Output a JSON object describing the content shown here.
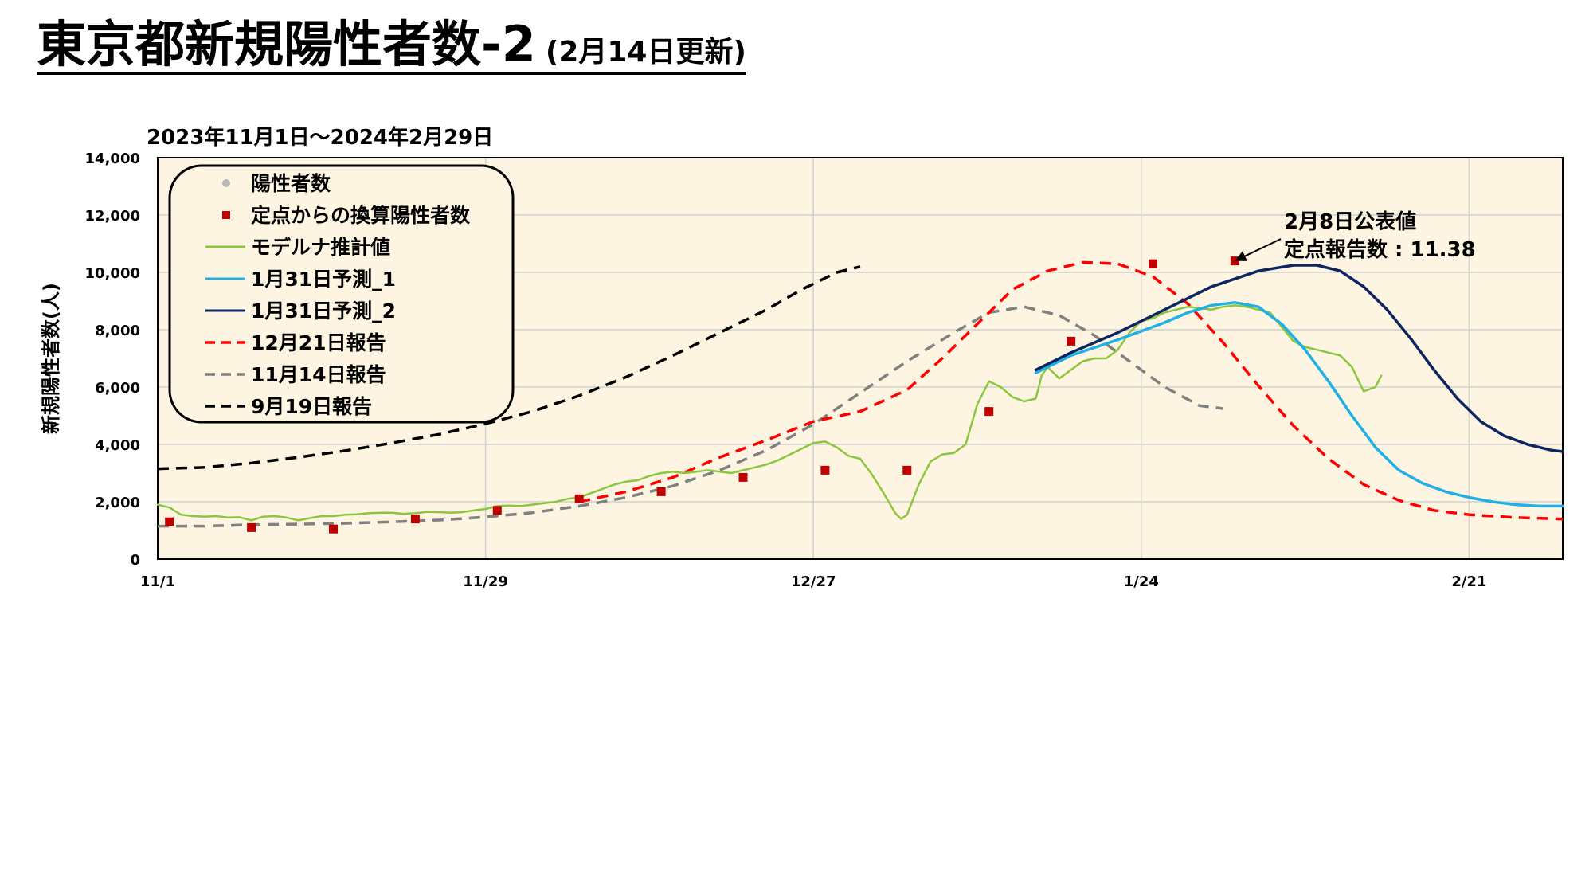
{
  "title": {
    "main": "東京都新規陽性者数-2",
    "sub": "(2月14日更新)"
  },
  "period": "2023年11月1日～2024年2月29日",
  "chart_data": {
    "type": "line",
    "ylabel": "新規陽性者数(人)",
    "ylim": [
      0,
      14000
    ],
    "yticks": [
      0,
      2000,
      4000,
      6000,
      8000,
      10000,
      12000,
      14000
    ],
    "ytick_labels": [
      "0",
      "2,000",
      "4,000",
      "6,000",
      "8,000",
      "10,000",
      "12,000",
      "14,000"
    ],
    "xlim_days": [
      0,
      120
    ],
    "xticks": [
      {
        "day": 0,
        "label": "11/1"
      },
      {
        "day": 28,
        "label": "11/29"
      },
      {
        "day": 56,
        "label": "12/27"
      },
      {
        "day": 84,
        "label": "1/24"
      },
      {
        "day": 112,
        "label": "2/21"
      }
    ],
    "grid": true,
    "legend_position": "top-left",
    "plot_bg": "#fdf5e1",
    "annotation": {
      "line1": "2月8日公表値",
      "line2": "定点報告数 : 11.38",
      "day": 92,
      "value": 10400
    },
    "series": [
      {
        "name": "陽性者数",
        "type": "scatter",
        "marker": "circle",
        "color": "#b8b8b8",
        "points": []
      },
      {
        "name": "定点からの換算陽性者数",
        "type": "scatter",
        "marker": "square",
        "color": "#c00000",
        "points": [
          [
            1,
            1300
          ],
          [
            8,
            1100
          ],
          [
            15,
            1050
          ],
          [
            22,
            1400
          ],
          [
            29,
            1700
          ],
          [
            36,
            2100
          ],
          [
            43,
            2350
          ],
          [
            50,
            2850
          ],
          [
            57,
            3100
          ],
          [
            64,
            3100
          ],
          [
            71,
            5150
          ],
          [
            78,
            7600
          ],
          [
            85,
            10300
          ],
          [
            92,
            10400
          ]
        ]
      },
      {
        "name": "モデルナ推計値",
        "type": "line",
        "color": "#8cc63f",
        "dash": "solid",
        "points": [
          [
            0,
            1900
          ],
          [
            1,
            1800
          ],
          [
            2,
            1550
          ],
          [
            3,
            1500
          ],
          [
            4,
            1480
          ],
          [
            5,
            1500
          ],
          [
            6,
            1450
          ],
          [
            7,
            1460
          ],
          [
            8,
            1350
          ],
          [
            9,
            1480
          ],
          [
            10,
            1500
          ],
          [
            11,
            1450
          ],
          [
            12,
            1350
          ],
          [
            13,
            1430
          ],
          [
            14,
            1500
          ],
          [
            15,
            1500
          ],
          [
            16,
            1550
          ],
          [
            17,
            1560
          ],
          [
            18,
            1600
          ],
          [
            19,
            1620
          ],
          [
            20,
            1620
          ],
          [
            21,
            1580
          ],
          [
            22,
            1600
          ],
          [
            23,
            1650
          ],
          [
            24,
            1640
          ],
          [
            25,
            1620
          ],
          [
            26,
            1640
          ],
          [
            27,
            1700
          ],
          [
            28,
            1750
          ],
          [
            29,
            1850
          ],
          [
            30,
            1870
          ],
          [
            31,
            1850
          ],
          [
            32,
            1900
          ],
          [
            33,
            1950
          ],
          [
            34,
            2000
          ],
          [
            35,
            2100
          ],
          [
            36,
            2150
          ],
          [
            37,
            2300
          ],
          [
            38,
            2450
          ],
          [
            39,
            2600
          ],
          [
            40,
            2700
          ],
          [
            41,
            2750
          ],
          [
            42,
            2900
          ],
          [
            43,
            3000
          ],
          [
            44,
            3050
          ],
          [
            45,
            3000
          ],
          [
            46,
            3050
          ],
          [
            47,
            3100
          ],
          [
            48,
            3050
          ],
          [
            49,
            3000
          ],
          [
            50,
            3100
          ],
          [
            51,
            3200
          ],
          [
            52,
            3300
          ],
          [
            53,
            3450
          ],
          [
            54,
            3650
          ],
          [
            55,
            3850
          ],
          [
            56,
            4050
          ],
          [
            57,
            4100
          ],
          [
            58,
            3900
          ],
          [
            59,
            3600
          ],
          [
            60,
            3500
          ],
          [
            61,
            2950
          ],
          [
            62,
            2300
          ],
          [
            63,
            1600
          ],
          [
            63.5,
            1400
          ],
          [
            64,
            1550
          ],
          [
            65,
            2600
          ],
          [
            66,
            3400
          ],
          [
            67,
            3650
          ],
          [
            68,
            3700
          ],
          [
            69,
            4000
          ],
          [
            70,
            5400
          ],
          [
            71,
            6200
          ],
          [
            72,
            6000
          ],
          [
            73,
            5650
          ],
          [
            74,
            5500
          ],
          [
            75,
            5600
          ],
          [
            75.5,
            6400
          ],
          [
            76,
            6700
          ],
          [
            77,
            6300
          ],
          [
            78,
            6600
          ],
          [
            79,
            6900
          ],
          [
            80,
            7000
          ],
          [
            81,
            7000
          ],
          [
            81.5,
            7150
          ],
          [
            82,
            7300
          ],
          [
            83,
            7900
          ],
          [
            84,
            8300
          ],
          [
            85,
            8400
          ],
          [
            86,
            8600
          ],
          [
            87,
            8700
          ],
          [
            88,
            8800
          ],
          [
            89,
            8750
          ],
          [
            90,
            8700
          ],
          [
            91,
            8800
          ],
          [
            92,
            8850
          ],
          [
            93,
            8800
          ],
          [
            94,
            8700
          ],
          [
            95,
            8600
          ],
          [
            96,
            8100
          ],
          [
            97,
            7600
          ],
          [
            98,
            7400
          ],
          [
            99,
            7300
          ],
          [
            100,
            7200
          ],
          [
            101,
            7100
          ],
          [
            102,
            6700
          ],
          [
            103,
            5850
          ],
          [
            104,
            6000
          ],
          [
            104.5,
            6400
          ]
        ]
      },
      {
        "name": "1月31日予測_1",
        "type": "line",
        "color": "#1fb0e6",
        "dash": "solid",
        "points": [
          [
            75,
            6500
          ],
          [
            78,
            7100
          ],
          [
            82,
            7650
          ],
          [
            86,
            8250
          ],
          [
            88,
            8600
          ],
          [
            90,
            8850
          ],
          [
            92,
            8950
          ],
          [
            94,
            8800
          ],
          [
            96,
            8200
          ],
          [
            98,
            7300
          ],
          [
            100,
            6200
          ],
          [
            102,
            5000
          ],
          [
            104,
            3900
          ],
          [
            106,
            3100
          ],
          [
            108,
            2650
          ],
          [
            110,
            2350
          ],
          [
            112,
            2150
          ],
          [
            114,
            2000
          ],
          [
            116,
            1900
          ],
          [
            118,
            1850
          ],
          [
            120,
            1850
          ]
        ]
      },
      {
        "name": "1月31日予測_2",
        "type": "line",
        "color": "#0d2560",
        "dash": "solid",
        "points": [
          [
            75,
            6600
          ],
          [
            78,
            7200
          ],
          [
            82,
            7900
          ],
          [
            86,
            8700
          ],
          [
            90,
            9500
          ],
          [
            94,
            10050
          ],
          [
            97,
            10250
          ],
          [
            99,
            10250
          ],
          [
            101,
            10050
          ],
          [
            103,
            9500
          ],
          [
            105,
            8700
          ],
          [
            107,
            7700
          ],
          [
            109,
            6600
          ],
          [
            111,
            5600
          ],
          [
            113,
            4800
          ],
          [
            115,
            4300
          ],
          [
            117,
            4000
          ],
          [
            119,
            3800
          ],
          [
            120,
            3750
          ]
        ]
      },
      {
        "name": "12月21日報告",
        "type": "line",
        "color": "#ff0000",
        "dash": "dashed",
        "points": [
          [
            36,
            2000
          ],
          [
            40,
            2350
          ],
          [
            44,
            2850
          ],
          [
            48,
            3550
          ],
          [
            52,
            4150
          ],
          [
            56,
            4800
          ],
          [
            60,
            5150
          ],
          [
            64,
            5900
          ],
          [
            67,
            7000
          ],
          [
            70,
            8200
          ],
          [
            73,
            9400
          ],
          [
            76,
            10050
          ],
          [
            79,
            10350
          ],
          [
            82,
            10300
          ],
          [
            85,
            9850
          ],
          [
            88,
            8900
          ],
          [
            91,
            7550
          ],
          [
            94,
            6050
          ],
          [
            97,
            4650
          ],
          [
            100,
            3500
          ],
          [
            103,
            2600
          ],
          [
            106,
            2050
          ],
          [
            109,
            1700
          ],
          [
            112,
            1550
          ],
          [
            116,
            1450
          ],
          [
            120,
            1400
          ]
        ]
      },
      {
        "name": "11月14日報告",
        "type": "line",
        "color": "#808080",
        "dash": "dashed",
        "points": [
          [
            0,
            1150
          ],
          [
            4,
            1150
          ],
          [
            8,
            1200
          ],
          [
            12,
            1220
          ],
          [
            16,
            1250
          ],
          [
            20,
            1300
          ],
          [
            24,
            1360
          ],
          [
            28,
            1470
          ],
          [
            32,
            1620
          ],
          [
            36,
            1850
          ],
          [
            40,
            2150
          ],
          [
            44,
            2550
          ],
          [
            48,
            3100
          ],
          [
            52,
            3800
          ],
          [
            56,
            4700
          ],
          [
            60,
            5800
          ],
          [
            64,
            6900
          ],
          [
            68,
            7900
          ],
          [
            71,
            8600
          ],
          [
            74,
            8800
          ],
          [
            77,
            8500
          ],
          [
            80,
            7800
          ],
          [
            83,
            6900
          ],
          [
            86,
            6000
          ],
          [
            89,
            5350
          ],
          [
            91,
            5250
          ]
        ]
      },
      {
        "name": "9月19日報告",
        "type": "line",
        "color": "#000000",
        "dash": "dashed",
        "points": [
          [
            0,
            3150
          ],
          [
            4,
            3200
          ],
          [
            8,
            3350
          ],
          [
            12,
            3550
          ],
          [
            16,
            3780
          ],
          [
            20,
            4050
          ],
          [
            24,
            4350
          ],
          [
            28,
            4720
          ],
          [
            32,
            5150
          ],
          [
            36,
            5700
          ],
          [
            40,
            6350
          ],
          [
            44,
            7100
          ],
          [
            48,
            7900
          ],
          [
            52,
            8700
          ],
          [
            55,
            9400
          ],
          [
            58,
            10000
          ],
          [
            60,
            10200
          ]
        ]
      }
    ]
  }
}
